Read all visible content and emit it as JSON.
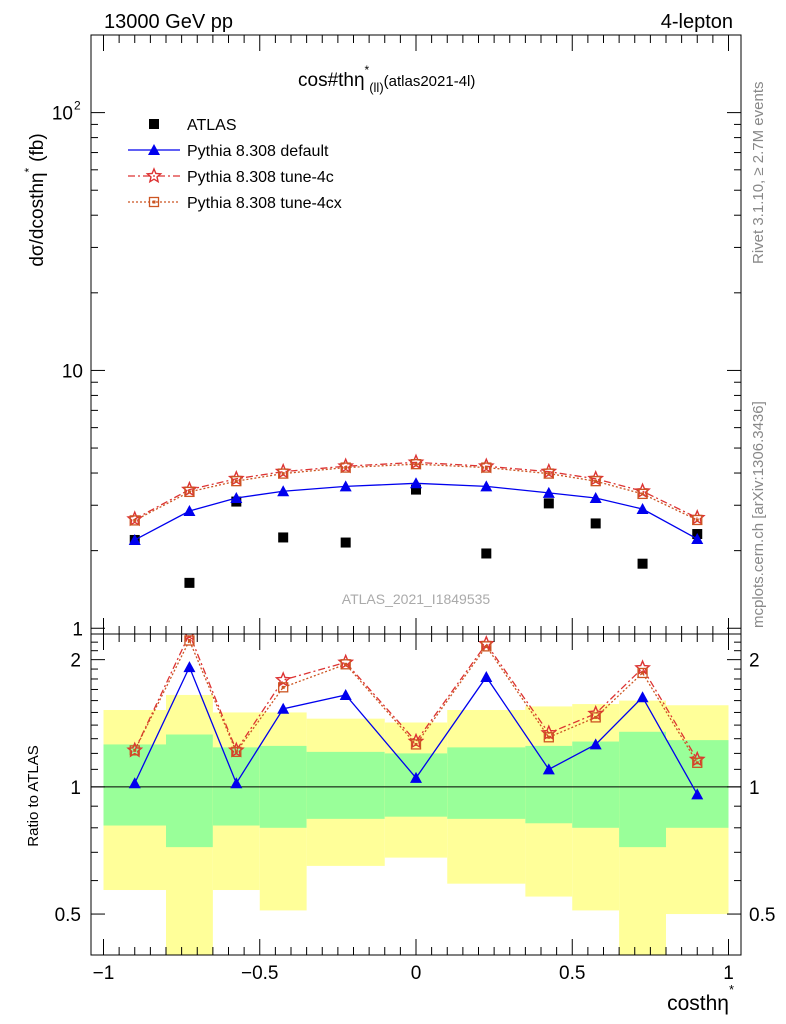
{
  "header": {
    "energy_label": "13000 GeV pp",
    "process_label": "4-lepton",
    "side_label_top": "Rivet 3.1.10, ≥ 2.7M events",
    "side_label_bottom": "mcplots.cern.ch [arXiv:1306.3436]"
  },
  "chart_data": [
    {
      "type": "scatter",
      "panel": "main",
      "title": "cos#thη",
      "title_sup": "*",
      "title_sub": "(ll)",
      "title_suffix": "(atlas2021-4l)",
      "xlabel": "cosθη",
      "ylabel": "dσ/dcosθη",
      "ylabel_text": "dσ/dcosthη",
      "ylabel_sup": "*",
      "ylabel_unit": "(fb)",
      "xlim": [
        -1.04,
        1.04
      ],
      "ylim": [
        0.95,
        200
      ],
      "yscale": "log",
      "yticks": [
        "1",
        "10",
        "10"
      ],
      "ytick_sup": "2",
      "watermark": "ATLAS_2021_I1849535",
      "legend_position": "top-left",
      "x": [
        -0.9,
        -0.725,
        -0.575,
        -0.425,
        -0.225,
        0.0,
        0.225,
        0.425,
        0.575,
        0.725,
        0.9
      ],
      "bin_edges": [
        -1.0,
        -0.8,
        -0.65,
        -0.5,
        -0.35,
        -0.1,
        0.1,
        0.35,
        0.5,
        0.65,
        0.8,
        1.0
      ],
      "series": [
        {
          "name": "ATLAS",
          "color": "#000000",
          "marker": "square",
          "values": [
            2.2,
            1.5,
            3.1,
            2.25,
            2.15,
            3.45,
            1.95,
            3.05,
            2.55,
            1.78,
            2.32
          ]
        },
        {
          "name": "Pythia 8.308 default",
          "color": "#0000ee",
          "marker": "triangle",
          "line": "solid",
          "values": [
            2.2,
            2.85,
            3.2,
            3.4,
            3.55,
            3.65,
            3.55,
            3.35,
            3.2,
            2.9,
            2.22
          ]
        },
        {
          "name": "Pythia 8.308 tune-4c",
          "color": "#dd3333",
          "marker": "star",
          "line": "dashdot",
          "values": [
            2.65,
            3.45,
            3.8,
            4.05,
            4.25,
            4.4,
            4.25,
            4.05,
            3.8,
            3.4,
            2.68
          ]
        },
        {
          "name": "Pythia 8.308 tune-4cx",
          "color": "#cc5522",
          "marker": "open-square",
          "line": "dotted",
          "values": [
            2.62,
            3.38,
            3.72,
            3.98,
            4.2,
            4.33,
            4.2,
            3.98,
            3.72,
            3.32,
            2.63
          ]
        }
      ]
    },
    {
      "type": "line",
      "panel": "ratio",
      "ylabel": "Ratio to ATLAS",
      "xlabel": "cosθη",
      "xlabel_text": "costhη",
      "xlabel_sup": "*",
      "ylim": [
        0.4,
        2.3
      ],
      "yscale": "log",
      "yticks": [
        0.5,
        1,
        2
      ],
      "xticks": [
        "−1",
        "−0.5",
        "0",
        "0.5",
        "1"
      ],
      "x": [
        -0.9,
        -0.725,
        -0.575,
        -0.425,
        -0.225,
        0.0,
        0.225,
        0.425,
        0.575,
        0.725,
        0.9
      ],
      "bin_edges": [
        -1.0,
        -0.8,
        -0.65,
        -0.5,
        -0.35,
        -0.1,
        0.1,
        0.35,
        0.5,
        0.65,
        0.8,
        1.0
      ],
      "band_inner": {
        "color": "#99ff99",
        "low": [
          0.81,
          0.72,
          0.81,
          0.8,
          0.84,
          0.85,
          0.84,
          0.82,
          0.8,
          0.72,
          0.8
        ],
        "high": [
          1.26,
          1.33,
          1.24,
          1.25,
          1.21,
          1.2,
          1.24,
          1.25,
          1.28,
          1.35,
          1.29
        ]
      },
      "band_outer": {
        "color": "#ffff99",
        "low": [
          0.57,
          0.25,
          0.57,
          0.51,
          0.65,
          0.68,
          0.59,
          0.55,
          0.51,
          0.25,
          0.5
        ],
        "high": [
          1.52,
          1.65,
          1.5,
          1.5,
          1.45,
          1.42,
          1.52,
          1.55,
          1.57,
          1.6,
          1.56
        ]
      },
      "series": [
        {
          "name": "Pythia 8.308 default",
          "color": "#0000ee",
          "marker": "triangle",
          "line": "solid",
          "values": [
            1.02,
            1.92,
            1.02,
            1.53,
            1.65,
            1.05,
            1.82,
            1.1,
            1.26,
            1.63,
            0.96
          ]
        },
        {
          "name": "Pythia 8.308 tune-4c",
          "color": "#dd3333",
          "marker": "star",
          "line": "dashdot",
          "values": [
            1.22,
            2.3,
            1.22,
            1.79,
            1.97,
            1.28,
            2.18,
            1.34,
            1.49,
            1.91,
            1.16
          ]
        },
        {
          "name": "Pythia 8.308 tune-4cx",
          "color": "#cc5522",
          "marker": "open-square",
          "line": "dotted",
          "values": [
            1.22,
            2.22,
            1.21,
            1.72,
            1.95,
            1.26,
            2.15,
            1.31,
            1.46,
            1.86,
            1.14
          ]
        }
      ]
    }
  ]
}
